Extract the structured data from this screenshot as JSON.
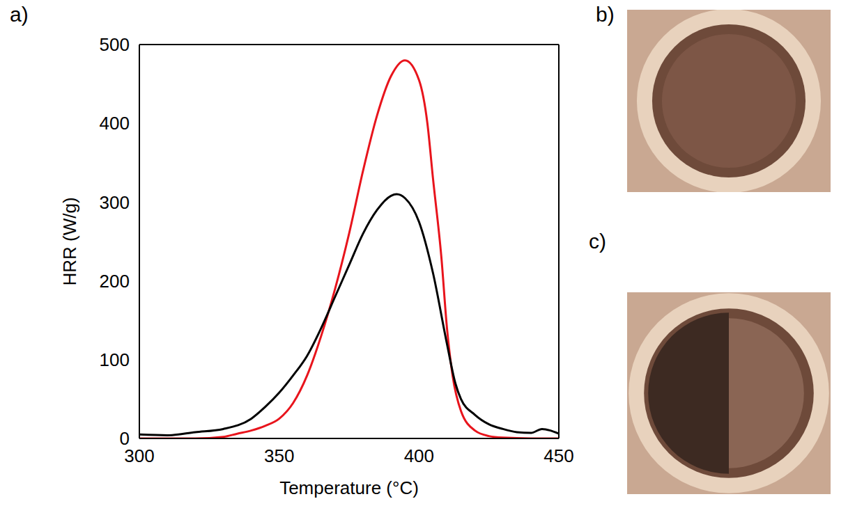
{
  "chart_data": {
    "type": "line",
    "xlabel": "Temperature (°C)",
    "ylabel": "HRR (W/g)",
    "xlim": [
      300,
      450
    ],
    "xticks": [
      300,
      350,
      400,
      450
    ],
    "ylim": [
      0,
      500
    ],
    "yticks": [
      0,
      100,
      200,
      300,
      400,
      500
    ],
    "grid": false,
    "series": [
      {
        "color": "#e8141c",
        "x": [
          300,
          310,
          320,
          330,
          335,
          340,
          345,
          350,
          355,
          360,
          365,
          370,
          375,
          380,
          385,
          390,
          395,
          400,
          403,
          405,
          408,
          410,
          412,
          415,
          420,
          425,
          430,
          440,
          450
        ],
        "values": [
          0,
          0,
          0,
          2,
          6,
          10,
          16,
          25,
          45,
          80,
          130,
          190,
          260,
          340,
          410,
          460,
          480,
          455,
          400,
          330,
          230,
          140,
          80,
          35,
          10,
          3,
          1,
          0,
          0
        ]
      },
      {
        "color": "#000000",
        "x": [
          300,
          310,
          320,
          330,
          340,
          345,
          350,
          355,
          360,
          365,
          370,
          375,
          380,
          385,
          390,
          392,
          395,
          400,
          405,
          410,
          413,
          415,
          420,
          425,
          430,
          435,
          440,
          444,
          447,
          450
        ],
        "values": [
          5,
          4,
          8,
          12,
          25,
          40,
          58,
          80,
          105,
          140,
          180,
          220,
          260,
          290,
          308,
          310,
          305,
          275,
          210,
          120,
          70,
          50,
          30,
          18,
          12,
          8,
          7,
          12,
          10,
          6
        ]
      }
    ]
  },
  "panel_labels": [
    "a)",
    "b)",
    "c)"
  ]
}
